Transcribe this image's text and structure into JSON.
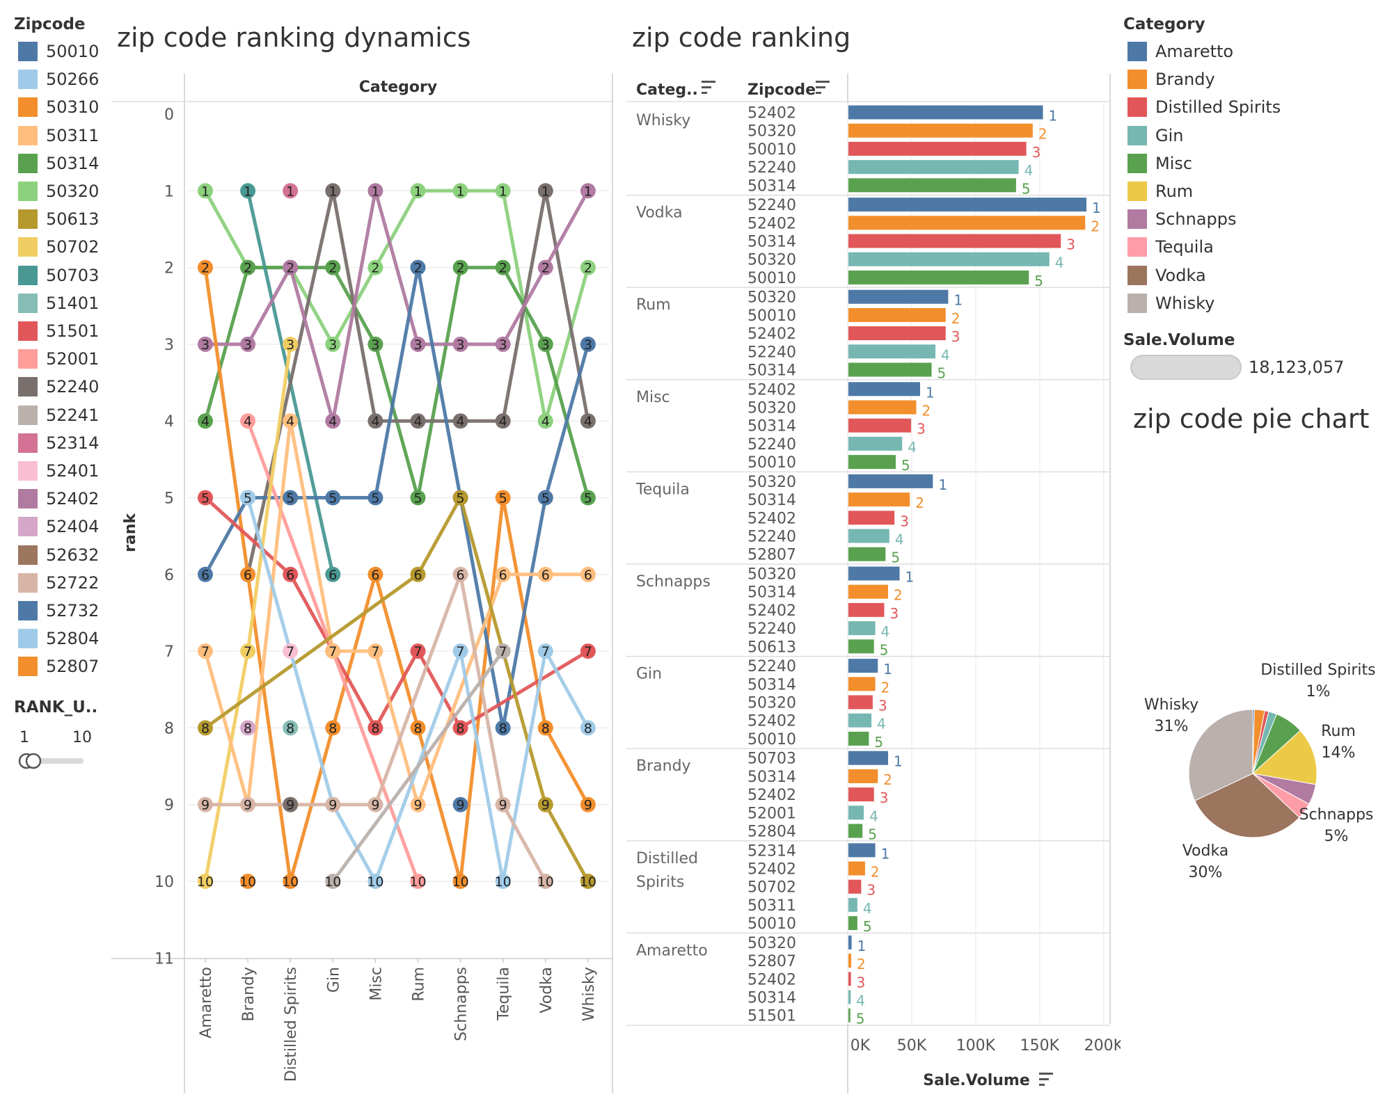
{
  "titles": {
    "ranking_dynamics": "zip code ranking dynamics",
    "ranking": "zip code ranking",
    "pie": "zip code pie chart"
  },
  "zip_legend": {
    "title": "Zipcode",
    "items": [
      {
        "label": "50010",
        "color": "#4e79a7"
      },
      {
        "label": "50266",
        "color": "#a0cbe8"
      },
      {
        "label": "50310",
        "color": "#f28e2b"
      },
      {
        "label": "50311",
        "color": "#ffbe7d"
      },
      {
        "label": "50314",
        "color": "#59a14f"
      },
      {
        "label": "50320",
        "color": "#8cd17d"
      },
      {
        "label": "50613",
        "color": "#b6992d"
      },
      {
        "label": "50702",
        "color": "#f1ce63"
      },
      {
        "label": "50703",
        "color": "#499894"
      },
      {
        "label": "51401",
        "color": "#86bcb6"
      },
      {
        "label": "51501",
        "color": "#e15759"
      },
      {
        "label": "52001",
        "color": "#ff9d9a"
      },
      {
        "label": "52240",
        "color": "#79706e"
      },
      {
        "label": "52241",
        "color": "#bab0ac"
      },
      {
        "label": "52314",
        "color": "#d37295"
      },
      {
        "label": "52401",
        "color": "#fabfd2"
      },
      {
        "label": "52402",
        "color": "#b07aa1"
      },
      {
        "label": "52404",
        "color": "#d4a6c8"
      },
      {
        "label": "52632",
        "color": "#9d7660"
      },
      {
        "label": "52722",
        "color": "#d7b5a6"
      },
      {
        "label": "52732",
        "color": "#4e79a7"
      },
      {
        "label": "52804",
        "color": "#a0cbe8"
      },
      {
        "label": "52807",
        "color": "#f28e2b"
      }
    ]
  },
  "rank_filter": {
    "title": "RANK_U..",
    "min_label": "1",
    "max_label": "10"
  },
  "category_legend": {
    "title": "Category",
    "items": [
      {
        "label": "Amaretto",
        "color": "#4e79a7"
      },
      {
        "label": "Brandy",
        "color": "#f28e2b"
      },
      {
        "label": "Distilled Spirits",
        "color": "#e15759"
      },
      {
        "label": "Gin",
        "color": "#76b7b2"
      },
      {
        "label": "Misc",
        "color": "#59a14f"
      },
      {
        "label": "Rum",
        "color": "#edc948"
      },
      {
        "label": "Schnapps",
        "color": "#b07aa1"
      },
      {
        "label": "Tequila",
        "color": "#ff9da7"
      },
      {
        "label": "Vodka",
        "color": "#9c755f"
      },
      {
        "label": "Whisky",
        "color": "#bab0ac"
      }
    ]
  },
  "size_legend": {
    "title": "Sale.Volume",
    "value": "18,123,057"
  },
  "chart_data": [
    {
      "id": "bump",
      "type": "line",
      "header": "Category",
      "ylabel": "rank",
      "ylim": [
        0,
        11
      ],
      "yticks": [
        "0",
        "1",
        "2",
        "3",
        "4",
        "5",
        "6",
        "7",
        "8",
        "9",
        "10",
        "11"
      ],
      "categories": [
        "Amaretto",
        "Brandy",
        "Distilled Spirits",
        "Gin",
        "Misc",
        "Rum",
        "Schnapps",
        "Tequila",
        "Vodka",
        "Whisky"
      ],
      "series": [
        {
          "color": "#8cd17d",
          "values": [
            1,
            2,
            2,
            3,
            2,
            1,
            1,
            1,
            4,
            2
          ]
        },
        {
          "color": "#59a14f",
          "values": [
            4,
            2,
            2,
            2,
            3,
            5,
            2,
            2,
            3,
            5
          ]
        },
        {
          "color": "#499894",
          "values": [
            null,
            1,
            null,
            6,
            null,
            null,
            null,
            null,
            null,
            null
          ]
        },
        {
          "color": "#d37295",
          "values": [
            null,
            null,
            1,
            null,
            null,
            null,
            null,
            null,
            null,
            null
          ]
        },
        {
          "color": "#79706e",
          "values": [
            null,
            6,
            null,
            1,
            4,
            4,
            4,
            4,
            1,
            4
          ]
        },
        {
          "color": "#b07aa1",
          "values": [
            3,
            3,
            2,
            4,
            1,
            3,
            3,
            3,
            2,
            1
          ]
        },
        {
          "color": "#f28e2b",
          "values": [
            2,
            6,
            10,
            8,
            6,
            8,
            10,
            5,
            8,
            9
          ]
        },
        {
          "color": "#4e79a7",
          "values": [
            6,
            5,
            5,
            5,
            5,
            2,
            5,
            8,
            5,
            3
          ]
        },
        {
          "color": "#e15759",
          "values": [
            5,
            null,
            6,
            7,
            8,
            7,
            8,
            null,
            null,
            7
          ]
        },
        {
          "color": "#ff9d9a",
          "values": [
            null,
            4,
            null,
            7,
            null,
            10,
            null,
            null,
            null,
            null
          ]
        },
        {
          "color": "#f1ce63",
          "values": [
            10,
            7,
            3,
            null,
            null,
            null,
            null,
            null,
            null,
            null
          ]
        },
        {
          "color": "#ffbe7d",
          "values": [
            7,
            9,
            4,
            7,
            7,
            9,
            null,
            6,
            6,
            6
          ]
        },
        {
          "color": "#b6992d",
          "values": [
            8,
            null,
            null,
            null,
            null,
            6,
            5,
            null,
            9,
            10
          ]
        },
        {
          "color": "#a0cbe8",
          "values": [
            null,
            5,
            null,
            9,
            10,
            null,
            7,
            10,
            7,
            8
          ]
        },
        {
          "color": "#d7b5a6",
          "values": [
            9,
            9,
            9,
            9,
            9,
            null,
            6,
            9,
            10,
            null
          ]
        },
        {
          "color": "#bab0ac",
          "values": [
            null,
            null,
            null,
            10,
            null,
            null,
            null,
            7,
            null,
            null
          ]
        },
        {
          "color": "#86bcb6",
          "values": [
            null,
            null,
            8,
            null,
            null,
            null,
            null,
            null,
            null,
            null
          ]
        },
        {
          "color": "#d4a6c8",
          "values": [
            null,
            8,
            null,
            null,
            null,
            null,
            null,
            null,
            null,
            null
          ]
        },
        {
          "color": "#fabfd2",
          "values": [
            null,
            null,
            7,
            null,
            null,
            null,
            null,
            null,
            null,
            null
          ]
        },
        {
          "color": "#f1ce63",
          "values": [
            null,
            null,
            null,
            null,
            null,
            null,
            null,
            null,
            null,
            null
          ]
        },
        {
          "color": "#79706e",
          "values": [
            null,
            null,
            9,
            null,
            null,
            null,
            null,
            null,
            null,
            null
          ]
        },
        {
          "color": "#4e79a7",
          "values": [
            null,
            null,
            null,
            null,
            null,
            null,
            9,
            null,
            null,
            null
          ]
        },
        {
          "color": "#f28e2b",
          "values": [
            null,
            10,
            null,
            null,
            null,
            null,
            null,
            null,
            null,
            null
          ]
        }
      ]
    },
    {
      "id": "ranking",
      "type": "bar",
      "headers": {
        "category": "Categ..",
        "zipcode": "Zipcode"
      },
      "xlabel": "Sale.Volume",
      "xlim": [
        0,
        205000
      ],
      "xticks": [
        {
          "v": 0,
          "t": "0K"
        },
        {
          "v": 50000,
          "t": "50K"
        },
        {
          "v": 100000,
          "t": "100K"
        },
        {
          "v": 150000,
          "t": "150K"
        },
        {
          "v": 200000,
          "t": "200K"
        }
      ],
      "rank_colors": [
        "#4e79a7",
        "#f28e2b",
        "#e15759",
        "#76b7b2",
        "#59a14f"
      ],
      "groups": [
        {
          "category": [
            "Whisky"
          ],
          "rows": [
            {
              "zip": "52402",
              "value": 152000
            },
            {
              "zip": "50320",
              "value": 144000
            },
            {
              "zip": "50010",
              "value": 139000
            },
            {
              "zip": "52240",
              "value": 133000
            },
            {
              "zip": "50314",
              "value": 131000
            }
          ]
        },
        {
          "category": [
            "Vodka"
          ],
          "rows": [
            {
              "zip": "52240",
              "value": 186000
            },
            {
              "zip": "52402",
              "value": 185000
            },
            {
              "zip": "50314",
              "value": 166000
            },
            {
              "zip": "50320",
              "value": 157000
            },
            {
              "zip": "50010",
              "value": 141000
            }
          ]
        },
        {
          "category": [
            "Rum"
          ],
          "rows": [
            {
              "zip": "50320",
              "value": 78000
            },
            {
              "zip": "50010",
              "value": 76000
            },
            {
              "zip": "52402",
              "value": 76000
            },
            {
              "zip": "52240",
              "value": 68000
            },
            {
              "zip": "50314",
              "value": 65000
            }
          ]
        },
        {
          "category": [
            "Misc"
          ],
          "rows": [
            {
              "zip": "52402",
              "value": 56000
            },
            {
              "zip": "50320",
              "value": 53000
            },
            {
              "zip": "50314",
              "value": 49000
            },
            {
              "zip": "52240",
              "value": 42000
            },
            {
              "zip": "50010",
              "value": 37000
            }
          ]
        },
        {
          "category": [
            "Tequila"
          ],
          "rows": [
            {
              "zip": "50320",
              "value": 66000
            },
            {
              "zip": "50314",
              "value": 48000
            },
            {
              "zip": "52402",
              "value": 36000
            },
            {
              "zip": "52240",
              "value": 32000
            },
            {
              "zip": "52807",
              "value": 29000
            }
          ]
        },
        {
          "category": [
            "Schnapps"
          ],
          "rows": [
            {
              "zip": "50320",
              "value": 40000
            },
            {
              "zip": "50314",
              "value": 31000
            },
            {
              "zip": "52402",
              "value": 28000
            },
            {
              "zip": "52240",
              "value": 21000
            },
            {
              "zip": "50613",
              "value": 20000
            }
          ]
        },
        {
          "category": [
            "Gin"
          ],
          "rows": [
            {
              "zip": "52240",
              "value": 23000
            },
            {
              "zip": "50314",
              "value": 21000
            },
            {
              "zip": "50320",
              "value": 19000
            },
            {
              "zip": "52402",
              "value": 18000
            },
            {
              "zip": "50010",
              "value": 16000
            }
          ]
        },
        {
          "category": [
            "Brandy"
          ],
          "rows": [
            {
              "zip": "50703",
              "value": 31000
            },
            {
              "zip": "50314",
              "value": 23000
            },
            {
              "zip": "52402",
              "value": 20000
            },
            {
              "zip": "52001",
              "value": 12000
            },
            {
              "zip": "52804",
              "value": 11000
            }
          ]
        },
        {
          "category": [
            "Distilled",
            "Spirits"
          ],
          "rows": [
            {
              "zip": "52314",
              "value": 21000
            },
            {
              "zip": "52402",
              "value": 13000
            },
            {
              "zip": "50702",
              "value": 10000
            },
            {
              "zip": "50311",
              "value": 7000
            },
            {
              "zip": "50010",
              "value": 7000
            }
          ]
        },
        {
          "category": [
            "Amaretto"
          ],
          "rows": [
            {
              "zip": "50320",
              "value": 2500
            },
            {
              "zip": "52807",
              "value": 2200
            },
            {
              "zip": "52402",
              "value": 2000
            },
            {
              "zip": "50314",
              "value": 1800
            },
            {
              "zip": "51501",
              "value": 1500
            }
          ]
        }
      ]
    },
    {
      "id": "pie",
      "type": "pie",
      "slices": [
        {
          "name": "Amaretto",
          "value": 0.4,
          "color": "#4e79a7"
        },
        {
          "name": "Brandy",
          "value": 2.5,
          "color": "#f28e2b"
        },
        {
          "name": "Distilled Spirits",
          "value": 1,
          "color": "#e15759"
        },
        {
          "name": "Gin",
          "value": 2,
          "color": "#76b7b2"
        },
        {
          "name": "Misc",
          "value": 7,
          "color": "#59a14f"
        },
        {
          "name": "Rum",
          "value": 14,
          "color": "#edc948"
        },
        {
          "name": "Schnapps",
          "value": 5,
          "color": "#b07aa1"
        },
        {
          "name": "Tequila",
          "value": 4,
          "color": "#ff9da7"
        },
        {
          "name": "Vodka",
          "value": 30,
          "color": "#9c755f"
        },
        {
          "name": "Whisky",
          "value": 31,
          "color": "#bab0ac"
        }
      ],
      "labels": [
        {
          "name": "Distilled Spirits",
          "pct": "1%"
        },
        {
          "name": "Rum",
          "pct": "14%"
        },
        {
          "name": "Schnapps",
          "pct": "5%"
        },
        {
          "name": "Vodka",
          "pct": "30%"
        },
        {
          "name": "Whisky",
          "pct": "31%"
        }
      ]
    }
  ]
}
